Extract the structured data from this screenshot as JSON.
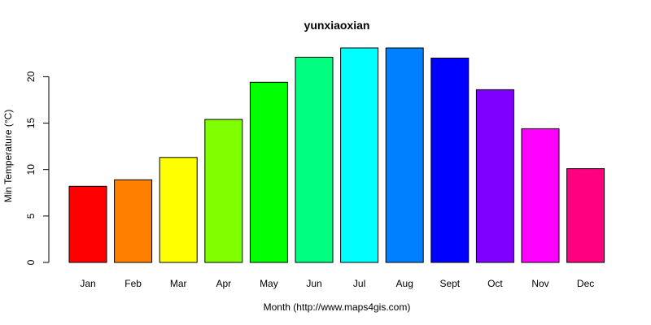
{
  "chart_data": {
    "type": "bar",
    "title": "yunxiaoxian",
    "xlabel": "Month (http://www.maps4gis.com)",
    "ylabel": "Min Temperature (°C)",
    "categories": [
      "Jan",
      "Feb",
      "Mar",
      "Apr",
      "May",
      "Jun",
      "Jul",
      "Aug",
      "Sept",
      "Oct",
      "Nov",
      "Dec"
    ],
    "values": [
      8.2,
      8.9,
      11.3,
      15.4,
      19.4,
      22.1,
      23.1,
      23.1,
      22.0,
      18.6,
      14.4,
      10.1
    ],
    "colors": [
      "#ff0000",
      "#ff8000",
      "#ffff00",
      "#80ff00",
      "#00ff00",
      "#00ff80",
      "#00ffff",
      "#0080ff",
      "#0000ff",
      "#8000ff",
      "#ff00ff",
      "#ff0080"
    ],
    "yticks": [
      0,
      5,
      10,
      15,
      20
    ],
    "ylim": [
      0,
      23.1
    ],
    "grid": false,
    "legend": "none"
  }
}
